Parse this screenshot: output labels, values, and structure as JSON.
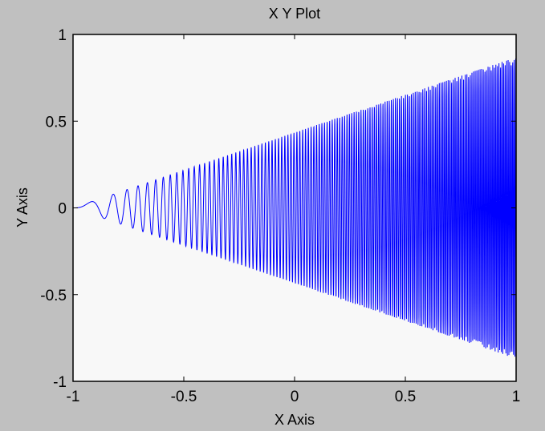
{
  "chart_data": {
    "type": "line",
    "title": "X Y Plot",
    "xlabel": "X Axis",
    "ylabel": "Y Axis",
    "xlim": [
      -1,
      1
    ],
    "ylim": [
      -1,
      1
    ],
    "xticks": [
      "-1",
      "-0.5",
      "0",
      "0.5",
      "1"
    ],
    "yticks": [
      "1",
      "0.5",
      "0",
      "-0.5",
      "-1"
    ],
    "grid": false,
    "series": [
      {
        "style": "dense oscillating line filling a wedge; apex at x=-1,y=0; envelope y = ±(x+1)·0.435",
        "x_range": [
          -1,
          1
        ],
        "envelope_at_x_end": 0.87,
        "color": "#0000ff"
      }
    ],
    "colors": {
      "figure_bg": "#c0c0c0",
      "axes_bg": "#f8f8f8",
      "line": "#0000ff"
    }
  }
}
